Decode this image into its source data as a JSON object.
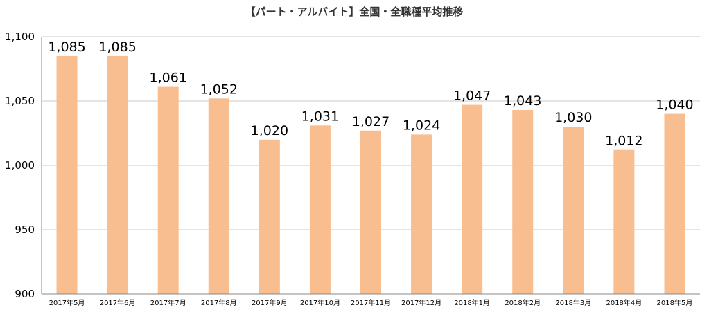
{
  "chart_data": {
    "type": "bar",
    "title": "【パート・アルバイト】全国・全職種平均推移",
    "xlabel": "",
    "ylabel": "",
    "categories": [
      "2017年5月",
      "2017年6月",
      "2017年7月",
      "2017年8月",
      "2017年9月",
      "2017年10月",
      "2017年11月",
      "2017年12月",
      "2018年1月",
      "2018年2月",
      "2018年3月",
      "2018年4月",
      "2018年5月"
    ],
    "values": [
      1085,
      1085,
      1061,
      1052,
      1020,
      1031,
      1027,
      1024,
      1047,
      1043,
      1030,
      1012,
      1040
    ],
    "value_labels": [
      "1,085",
      "1,085",
      "1,061",
      "1,052",
      "1,020",
      "1,031",
      "1,027",
      "1,024",
      "1,047",
      "1,043",
      "1,030",
      "1,012",
      "1,040"
    ],
    "ylim": [
      900,
      1100
    ],
    "yticks": [
      900,
      950,
      1000,
      1050,
      1100
    ],
    "ytick_labels": [
      "900",
      "950",
      "1,000",
      "1,050",
      "1,100"
    ],
    "grid": true,
    "legend": "none",
    "bar_color": "#f9be8f"
  }
}
